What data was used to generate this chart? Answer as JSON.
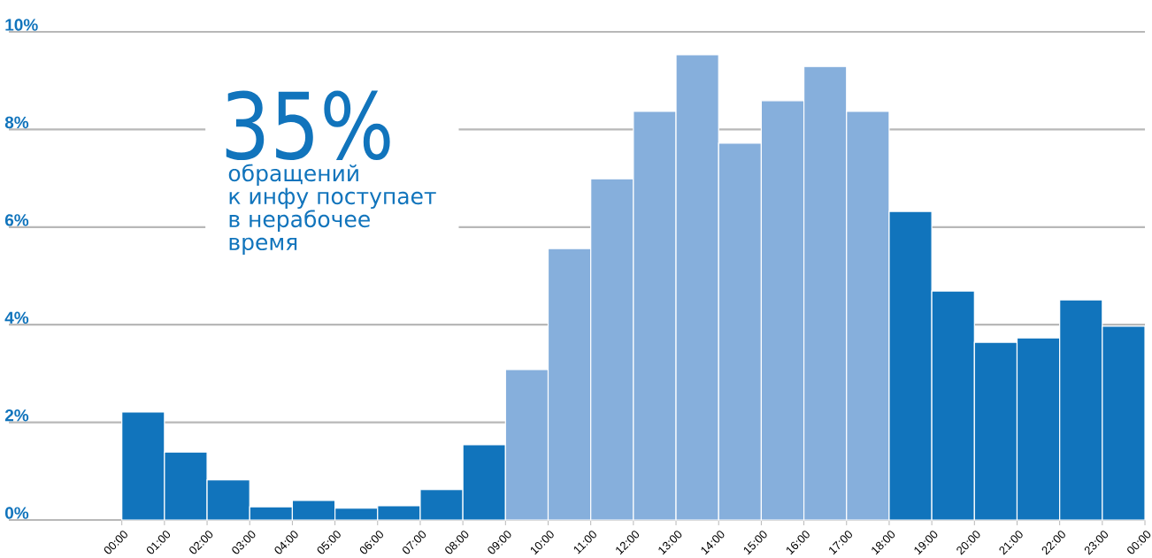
{
  "chart_data": {
    "type": "histogram",
    "bins": [
      0,
      1,
      2,
      3,
      4,
      5,
      6,
      7,
      8,
      9,
      10,
      11,
      12,
      13,
      14,
      15,
      16,
      17,
      18,
      19,
      20,
      21,
      22,
      23,
      24
    ],
    "values": [
      2.21,
      1.39,
      0.82,
      0.27,
      0.4,
      0.24,
      0.29,
      0.62,
      1.54,
      3.08,
      5.56,
      6.99,
      8.37,
      9.53,
      7.72,
      8.59,
      9.29,
      8.37,
      6.32,
      4.69,
      3.64,
      3.73,
      4.51,
      3.97
    ],
    "colors": [
      "#1174bc",
      "#1174bc",
      "#1174bc",
      "#1174bc",
      "#1174bc",
      "#1174bc",
      "#1174bc",
      "#1174bc",
      "#1174bc",
      "#86afdc",
      "#86afdc",
      "#86afdc",
      "#86afdc",
      "#86afdc",
      "#86afdc",
      "#86afdc",
      "#86afdc",
      "#86afdc",
      "#1174bc",
      "#1174bc",
      "#1174bc",
      "#1174bc",
      "#1174bc",
      "#1174bc"
    ],
    "xlim": [
      -2.65,
      24
    ],
    "ylim": [
      0,
      10
    ],
    "xticks": [
      {
        "value": 0,
        "label": "00:00"
      },
      {
        "value": 1,
        "label": "01:00"
      },
      {
        "value": 2,
        "label": "02:00"
      },
      {
        "value": 3,
        "label": "03:00"
      },
      {
        "value": 4,
        "label": "04:00"
      },
      {
        "value": 5,
        "label": "05:00"
      },
      {
        "value": 6,
        "label": "06:00"
      },
      {
        "value": 7,
        "label": "07:00"
      },
      {
        "value": 8,
        "label": "08:00"
      },
      {
        "value": 9,
        "label": "09:00"
      },
      {
        "value": 10,
        "label": "10:00"
      },
      {
        "value": 11,
        "label": "11:00"
      },
      {
        "value": 12,
        "label": "12:00"
      },
      {
        "value": 13,
        "label": "13:00"
      },
      {
        "value": 14,
        "label": "14:00"
      },
      {
        "value": 15,
        "label": "15:00"
      },
      {
        "value": 16,
        "label": "16:00"
      },
      {
        "value": 17,
        "label": "17:00"
      },
      {
        "value": 18,
        "label": "18:00"
      },
      {
        "value": 19,
        "label": "19:00"
      },
      {
        "value": 20,
        "label": "20:00"
      },
      {
        "value": 21,
        "label": "21:00"
      },
      {
        "value": 22,
        "label": "22:00"
      },
      {
        "value": 23,
        "label": "23:00"
      },
      {
        "value": 24,
        "label": "00:00"
      }
    ],
    "yticks": [
      {
        "value": 0,
        "label": "0%"
      },
      {
        "value": 2,
        "label": "2%"
      },
      {
        "value": 4,
        "label": "4%"
      },
      {
        "value": 6,
        "label": "6%"
      },
      {
        "value": 8,
        "label": "8%"
      },
      {
        "value": 10,
        "label": "10%"
      }
    ],
    "grid": "y",
    "annotations": [
      "35%",
      "обращений",
      "к инфу поступает",
      "в нерабочее",
      "время"
    ]
  }
}
